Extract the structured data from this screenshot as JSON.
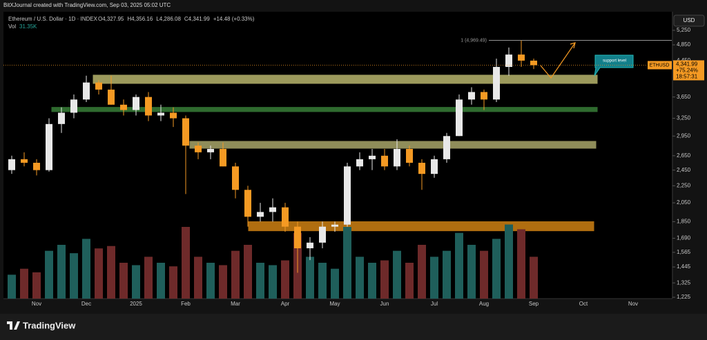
{
  "attribution": "BitXJournal created with TradingView.com, Sep 03, 2025 05:02 UTC",
  "brand": "TradingView",
  "chart_data": {
    "type": "candlestick",
    "title": "Ethereum / U.S. Dollar · 1D · INDEX",
    "legend_values": [
      "O4,327.95",
      "H4,356.16",
      "L4,286.08",
      "C4,341.99",
      "+14.48 (+0.33%)"
    ],
    "volume_label": "Vol",
    "volume_value": "31.35K",
    "currency": "USD",
    "symbol": "ETHUSD",
    "last_label": "4,341.99",
    "change_label": "+75.24%",
    "countdown": "18:57:31",
    "annotation": "support level",
    "high_label": "1 (4,969.49)",
    "high_value": 4969.49,
    "log": true,
    "ylim": [
      1216,
      5810
    ],
    "yticks": [
      {
        "value": 5250,
        "label": "5,250"
      },
      {
        "value": 4850,
        "label": "4,850"
      },
      {
        "value": 4450,
        "label": "4,450"
      },
      {
        "value": 3650,
        "label": "3,650"
      },
      {
        "value": 3250,
        "label": "3,250"
      },
      {
        "value": 2950,
        "label": "2,950"
      },
      {
        "value": 2650,
        "label": "2,650"
      },
      {
        "value": 2450,
        "label": "2,450"
      },
      {
        "value": 2250,
        "label": "2,250"
      },
      {
        "value": 2050,
        "label": "2,050"
      },
      {
        "value": 1850,
        "label": "1,850"
      },
      {
        "value": 1690,
        "label": "1,690"
      },
      {
        "value": 1565,
        "label": "1,565"
      },
      {
        "value": 1445,
        "label": "1,445"
      },
      {
        "value": 1325,
        "label": "1,325"
      },
      {
        "value": 1225,
        "label": "1,225"
      }
    ],
    "categories": [
      null,
      null,
      "Nov",
      null,
      null,
      null,
      "Dec",
      null,
      null,
      null,
      "2025",
      null,
      null,
      null,
      "Feb",
      null,
      null,
      null,
      "Mar",
      null,
      null,
      null,
      "Apr",
      null,
      null,
      null,
      "May",
      null,
      null,
      null,
      "Jun",
      null,
      null,
      null,
      "Jul",
      null,
      null,
      null,
      "Aug",
      null,
      null,
      null,
      "Sep",
      null,
      null,
      null,
      "Oct",
      null,
      null,
      null,
      "Nov",
      null,
      null,
      null
    ],
    "open": [
      2450,
      2600,
      2550,
      2450,
      3150,
      3350,
      3600,
      3950,
      3800,
      3500,
      3400,
      3650,
      3300,
      3350,
      3250,
      2800,
      2700,
      2750,
      2500,
      2200,
      1900,
      1950,
      2000,
      1800,
      1600,
      1650,
      1800,
      1820,
      2500,
      2600,
      2650,
      2500,
      2750,
      2550,
      2400,
      2600,
      2950,
      3600,
      3750,
      3600,
      4300,
      4600,
      4450,
      null,
      null,
      null,
      null,
      null,
      null,
      null,
      null,
      null,
      null,
      null
    ],
    "high": [
      2650,
      2700,
      2600,
      3250,
      3450,
      3700,
      4100,
      4000,
      4100,
      3600,
      3700,
      3750,
      3500,
      3450,
      3300,
      2850,
      2800,
      2850,
      2550,
      2250,
      2050,
      2100,
      2050,
      1850,
      1700,
      1850,
      1850,
      2550,
      2700,
      2750,
      2750,
      2900,
      2800,
      2600,
      2650,
      3000,
      3700,
      3850,
      3800,
      4500,
      4780,
      4969.49,
      4500,
      null,
      null,
      null,
      null,
      null,
      null,
      null,
      null,
      null,
      null,
      null
    ],
    "low": [
      2400,
      2500,
      2380,
      2430,
      3000,
      3250,
      3550,
      3700,
      3500,
      3300,
      3300,
      3200,
      3200,
      3100,
      2150,
      2600,
      2600,
      2500,
      2100,
      1800,
      1850,
      1850,
      1750,
      1400,
      1500,
      1600,
      1750,
      1800,
      2450,
      2450,
      2450,
      2450,
      2500,
      2200,
      2350,
      2550,
      2950,
      3500,
      3400,
      3550,
      4100,
      4300,
      4250,
      null,
      null,
      null,
      null,
      null,
      null,
      null,
      null,
      null,
      null,
      null
    ],
    "close": [
      2600,
      2550,
      2450,
      3150,
      3350,
      3600,
      3950,
      3800,
      3500,
      3400,
      3650,
      3300,
      3350,
      3250,
      2800,
      2700,
      2750,
      2500,
      2200,
      1900,
      1950,
      2000,
      1800,
      1600,
      1650,
      1800,
      1820,
      2500,
      2600,
      2650,
      2500,
      2750,
      2550,
      2400,
      2600,
      2950,
      3600,
      3750,
      3600,
      4300,
      4600,
      4450,
      4341.99,
      null,
      null,
      null,
      null,
      null,
      null,
      null,
      null,
      null,
      null,
      null
    ],
    "volume": [
      20,
      25,
      22,
      40,
      45,
      38,
      50,
      42,
      44,
      30,
      28,
      35,
      30,
      27,
      60,
      35,
      30,
      28,
      40,
      45,
      30,
      28,
      32,
      55,
      35,
      30,
      25,
      60,
      35,
      30,
      32,
      40,
      30,
      45,
      35,
      40,
      55,
      45,
      40,
      50,
      62,
      58,
      35,
      null,
      null,
      null,
      null,
      null,
      null,
      null,
      null,
      null,
      null,
      null
    ],
    "volume_lim": [
      0,
      120
    ],
    "up_color": "#e8e8e8",
    "down_color": "#f59a23",
    "up_volume_color": "#1f5f5b",
    "down_volume_color": "#6e2a2a",
    "zones": [
      {
        "low": 3930,
        "high": 4112,
        "color": "#9c9a5c"
      },
      {
        "low": 3370,
        "high": 3450,
        "color": "#2f6b2f"
      },
      {
        "low": 2760,
        "high": 2866,
        "color": "#8f8d5a"
      },
      {
        "low": 1760,
        "high": 1850,
        "color": "#b06e10"
      }
    ]
  }
}
